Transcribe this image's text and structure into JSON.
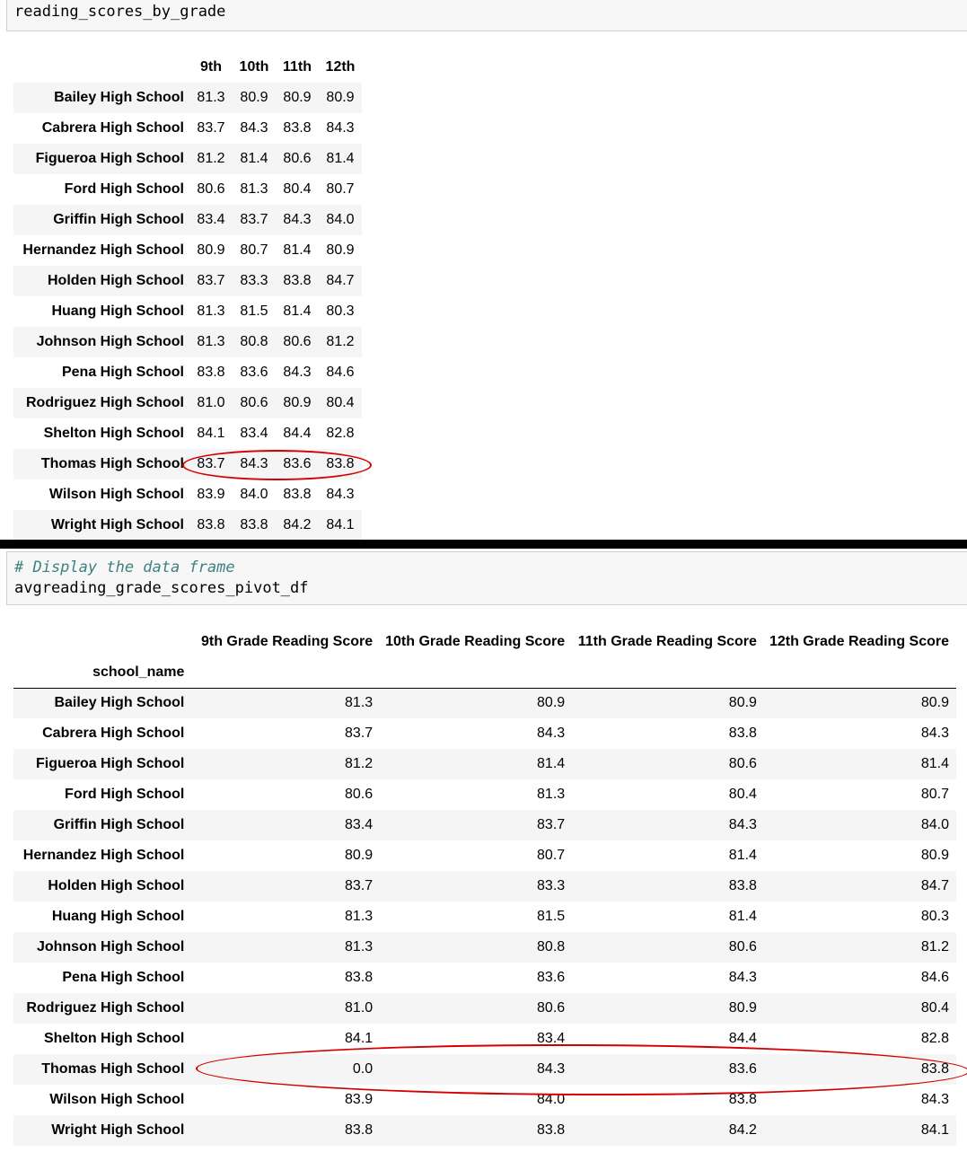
{
  "top": {
    "code": "reading_scores_by_grade",
    "columns": [
      "9th",
      "10th",
      "11th",
      "12th"
    ],
    "rows": [
      {
        "school": "Bailey High School",
        "values": [
          "81.3",
          "80.9",
          "80.9",
          "80.9"
        ]
      },
      {
        "school": "Cabrera High School",
        "values": [
          "83.7",
          "84.3",
          "83.8",
          "84.3"
        ]
      },
      {
        "school": "Figueroa High School",
        "values": [
          "81.2",
          "81.4",
          "80.6",
          "81.4"
        ]
      },
      {
        "school": "Ford High School",
        "values": [
          "80.6",
          "81.3",
          "80.4",
          "80.7"
        ]
      },
      {
        "school": "Griffin High School",
        "values": [
          "83.4",
          "83.7",
          "84.3",
          "84.0"
        ]
      },
      {
        "school": "Hernandez High School",
        "values": [
          "80.9",
          "80.7",
          "81.4",
          "80.9"
        ]
      },
      {
        "school": "Holden High School",
        "values": [
          "83.7",
          "83.3",
          "83.8",
          "84.7"
        ]
      },
      {
        "school": "Huang High School",
        "values": [
          "81.3",
          "81.5",
          "81.4",
          "80.3"
        ]
      },
      {
        "school": "Johnson High School",
        "values": [
          "81.3",
          "80.8",
          "80.6",
          "81.2"
        ]
      },
      {
        "school": "Pena High School",
        "values": [
          "83.8",
          "83.6",
          "84.3",
          "84.6"
        ]
      },
      {
        "school": "Rodriguez High School",
        "values": [
          "81.0",
          "80.6",
          "80.9",
          "80.4"
        ]
      },
      {
        "school": "Shelton High School",
        "values": [
          "84.1",
          "83.4",
          "84.4",
          "82.8"
        ]
      },
      {
        "school": "Thomas High School",
        "values": [
          "83.7",
          "84.3",
          "83.6",
          "83.8"
        ]
      },
      {
        "school": "Wilson High School",
        "values": [
          "83.9",
          "84.0",
          "83.8",
          "84.3"
        ]
      },
      {
        "school": "Wright High School",
        "values": [
          "83.8",
          "83.8",
          "84.2",
          "84.1"
        ]
      }
    ]
  },
  "bottom": {
    "comment": "# Display the data frame",
    "code": "avgreading_grade_scores_pivot_df",
    "columns": [
      "9th Grade Reading Score",
      "10th Grade Reading Score",
      "11th Grade Reading Score",
      "12th Grade Reading Score"
    ],
    "index_name": "school_name",
    "rows": [
      {
        "school": "Bailey High School",
        "values": [
          "81.3",
          "80.9",
          "80.9",
          "80.9"
        ]
      },
      {
        "school": "Cabrera High School",
        "values": [
          "83.7",
          "84.3",
          "83.8",
          "84.3"
        ]
      },
      {
        "school": "Figueroa High School",
        "values": [
          "81.2",
          "81.4",
          "80.6",
          "81.4"
        ]
      },
      {
        "school": "Ford High School",
        "values": [
          "80.6",
          "81.3",
          "80.4",
          "80.7"
        ]
      },
      {
        "school": "Griffin High School",
        "values": [
          "83.4",
          "83.7",
          "84.3",
          "84.0"
        ]
      },
      {
        "school": "Hernandez High School",
        "values": [
          "80.9",
          "80.7",
          "81.4",
          "80.9"
        ]
      },
      {
        "school": "Holden High School",
        "values": [
          "83.7",
          "83.3",
          "83.8",
          "84.7"
        ]
      },
      {
        "school": "Huang High School",
        "values": [
          "81.3",
          "81.5",
          "81.4",
          "80.3"
        ]
      },
      {
        "school": "Johnson High School",
        "values": [
          "81.3",
          "80.8",
          "80.6",
          "81.2"
        ]
      },
      {
        "school": "Pena High School",
        "values": [
          "83.8",
          "83.6",
          "84.3",
          "84.6"
        ]
      },
      {
        "school": "Rodriguez High School",
        "values": [
          "81.0",
          "80.6",
          "80.9",
          "80.4"
        ]
      },
      {
        "school": "Shelton High School",
        "values": [
          "84.1",
          "83.4",
          "84.4",
          "82.8"
        ]
      },
      {
        "school": "Thomas High School",
        "values": [
          "0.0",
          "84.3",
          "83.6",
          "83.8"
        ]
      },
      {
        "school": "Wilson High School",
        "values": [
          "83.9",
          "84.0",
          "83.8",
          "84.3"
        ]
      },
      {
        "school": "Wright High School",
        "values": [
          "83.8",
          "83.8",
          "84.2",
          "84.1"
        ]
      }
    ]
  },
  "annotation_color": "#d40000"
}
